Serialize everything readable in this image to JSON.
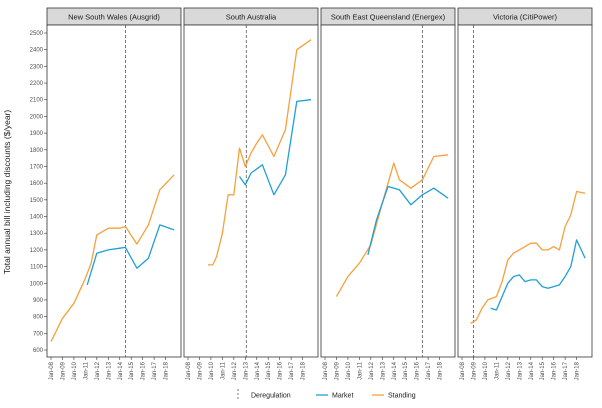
{
  "chart_data": {
    "type": "line",
    "ylabel": "Total annual bill including discounts ($/year)",
    "xlabel": "",
    "ylim": [
      600,
      2500
    ],
    "yticks": [
      600,
      700,
      800,
      900,
      1000,
      1100,
      1200,
      1300,
      1400,
      1500,
      1600,
      1700,
      1800,
      1900,
      2000,
      2100,
      2200,
      2300,
      2400,
      2500
    ],
    "xticks": [
      "Jan-08",
      "Jan-09",
      "Jan-10",
      "Jan-11",
      "Jan-12",
      "Jan-13",
      "Jan-14",
      "Jan-15",
      "Jan-16",
      "Jan-17",
      "Jan-18"
    ],
    "xrange": [
      "2008-01-01",
      "2018-12-31"
    ],
    "grid": false,
    "legend": {
      "position": "bottom",
      "entries": [
        {
          "label": "Deregulation",
          "style": "dashed",
          "color": "#555555"
        },
        {
          "label": "Market",
          "style": "solid",
          "color": "#1f9fd8"
        },
        {
          "label": "Standing",
          "style": "solid",
          "color": "#f5a13c"
        }
      ]
    },
    "colors": {
      "market": "#1f9fd8",
      "standing": "#f5a13c",
      "deregulation": "#555555"
    },
    "panels": [
      {
        "name": "New South Wales (Ausgrid)",
        "deregulation": "2014-07-01",
        "series": [
          {
            "name": "Standing",
            "x": [
              "2008-01-01",
              "2009-01-01",
              "2010-01-01",
              "2011-01-01",
              "2011-07-01",
              "2012-01-01",
              "2013-01-01",
              "2014-01-01",
              "2014-07-01",
              "2015-07-01",
              "2016-07-01",
              "2017-07-01",
              "2018-10-01"
            ],
            "y": [
              650,
              790,
              880,
              1030,
              1120,
              1290,
              1330,
              1330,
              1340,
              1235,
              1350,
              1560,
              1650
            ]
          },
          {
            "name": "Market",
            "x": [
              "2011-03-01",
              "2012-01-01",
              "2013-01-01",
              "2014-01-01",
              "2014-07-01",
              "2015-07-01",
              "2016-07-01",
              "2017-07-01",
              "2018-10-01"
            ],
            "y": [
              990,
              1180,
              1200,
              1210,
              1215,
              1090,
              1150,
              1350,
              1320
            ]
          }
        ]
      },
      {
        "name": "South Australia",
        "deregulation": "2013-02-01",
        "series": [
          {
            "name": "Standing",
            "x": [
              "2009-10-01",
              "2010-03-01",
              "2010-07-01",
              "2011-01-01",
              "2011-07-01",
              "2012-01-01",
              "2012-07-01",
              "2013-01-01",
              "2013-07-01",
              "2014-01-01",
              "2014-07-01",
              "2015-07-01",
              "2016-07-01",
              "2017-07-01",
              "2018-10-01"
            ],
            "y": [
              1110,
              1110,
              1160,
              1300,
              1530,
              1530,
              1810,
              1700,
              1780,
              1840,
              1890,
              1760,
              1920,
              2400,
              2460
            ]
          },
          {
            "name": "Market",
            "x": [
              "2012-07-01",
              "2013-01-01",
              "2013-07-01",
              "2014-07-01",
              "2015-07-01",
              "2016-07-01",
              "2017-07-01",
              "2018-10-01"
            ],
            "y": [
              1640,
              1590,
              1660,
              1710,
              1530,
              1650,
              2090,
              2100
            ]
          }
        ]
      },
      {
        "name": "South East Queensland (Energex)",
        "deregulation": "2016-07-01",
        "series": [
          {
            "name": "Standing",
            "x": [
              "2009-01-01",
              "2010-01-01",
              "2011-01-01",
              "2012-01-01",
              "2013-01-01",
              "2014-01-01",
              "2014-07-01",
              "2015-07-01",
              "2016-07-01",
              "2017-07-01",
              "2018-10-01"
            ],
            "y": [
              920,
              1040,
              1120,
              1230,
              1480,
              1720,
              1620,
              1570,
              1620,
              1760,
              1770
            ]
          },
          {
            "name": "Market",
            "x": [
              "2011-10-01",
              "2012-07-01",
              "2013-07-01",
              "2014-07-01",
              "2015-07-01",
              "2016-07-01",
              "2017-07-01",
              "2018-10-01"
            ],
            "y": [
              1170,
              1380,
              1580,
              1560,
              1470,
              1530,
              1570,
              1510
            ]
          }
        ]
      },
      {
        "name": "Victoria (CitiPower)",
        "deregulation": "2009-01-01",
        "series": [
          {
            "name": "Standing",
            "x": [
              "2008-10-01",
              "2009-04-01",
              "2009-10-01",
              "2010-04-01",
              "2011-01-01",
              "2011-07-01",
              "2012-01-01",
              "2012-07-01",
              "2013-01-01",
              "2013-07-01",
              "2014-01-01",
              "2014-07-01",
              "2015-01-01",
              "2015-07-01",
              "2016-01-01",
              "2016-07-01",
              "2017-01-01",
              "2017-07-01",
              "2018-01-01",
              "2018-10-01"
            ],
            "y": [
              760,
              780,
              850,
              900,
              920,
              1010,
              1140,
              1180,
              1200,
              1220,
              1240,
              1240,
              1200,
              1200,
              1220,
              1200,
              1340,
              1410,
              1550,
              1540
            ]
          },
          {
            "name": "Market",
            "x": [
              "2010-07-01",
              "2011-01-01",
              "2011-07-01",
              "2012-01-01",
              "2012-07-01",
              "2013-01-01",
              "2013-07-01",
              "2014-01-01",
              "2014-07-01",
              "2015-01-01",
              "2015-07-01",
              "2016-01-01",
              "2016-07-01",
              "2017-01-01",
              "2017-07-01",
              "2018-01-01",
              "2018-10-01"
            ],
            "y": [
              850,
              840,
              920,
              1000,
              1040,
              1050,
              1010,
              1020,
              1020,
              980,
              970,
              980,
              990,
              1040,
              1100,
              1260,
              1150
            ]
          }
        ]
      }
    ]
  }
}
